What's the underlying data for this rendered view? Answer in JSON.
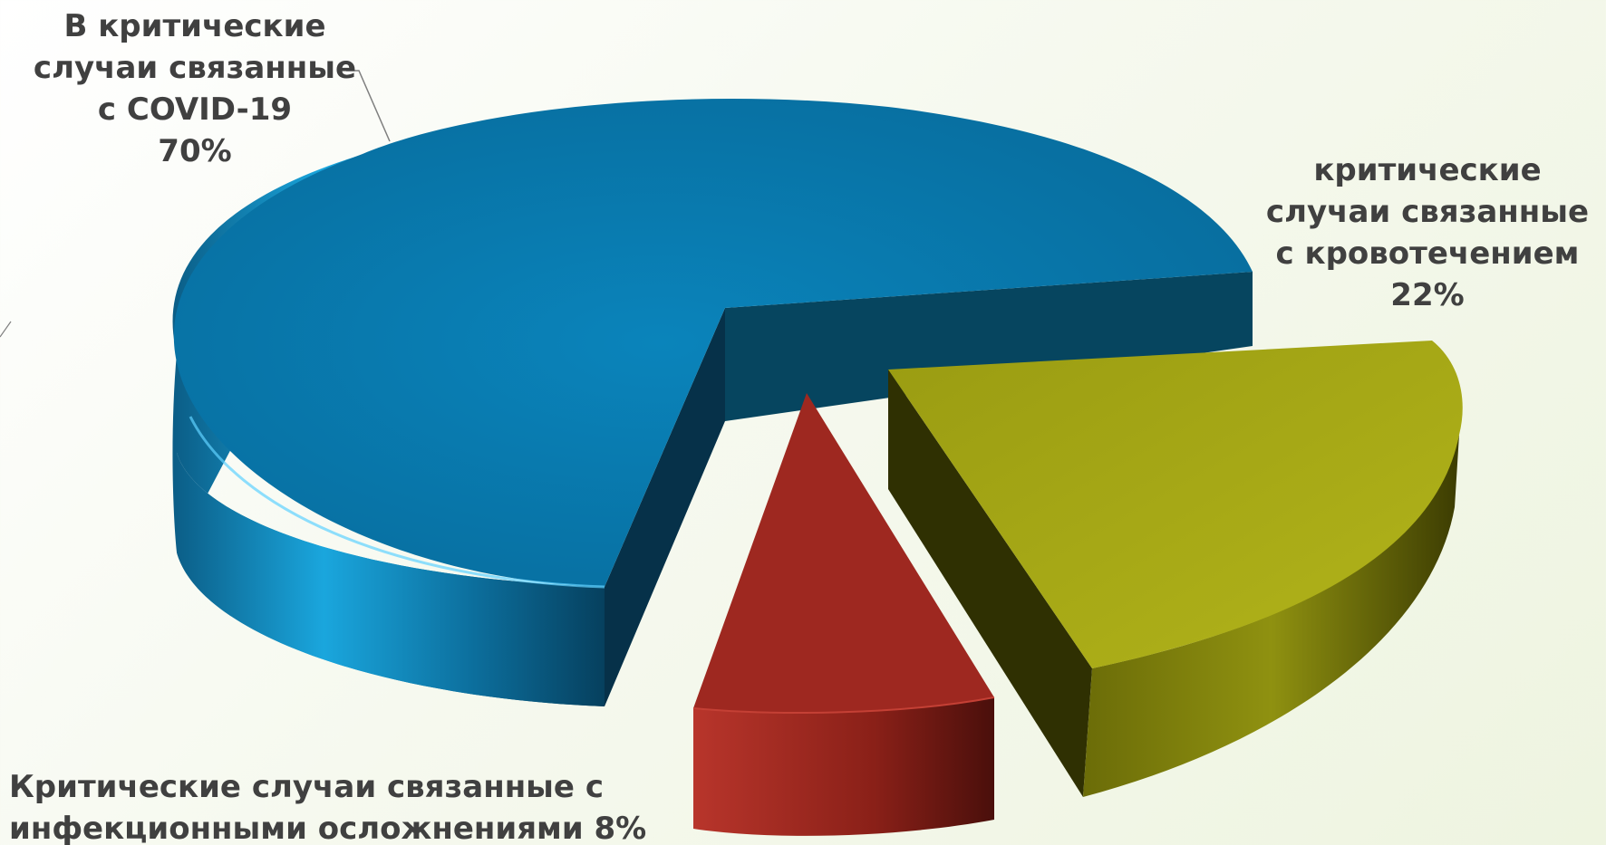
{
  "chart_data": {
    "type": "pie",
    "three_d": true,
    "exploded": true,
    "slices": [
      {
        "label_lines": [
          "В критические",
          "случаи связанные",
          "с COVID-19",
          "70%"
        ],
        "value": 70,
        "color": "#0a87bd"
      },
      {
        "label_lines": [
          "критические",
          "случаи связанные",
          "с кровотечением",
          "22%"
        ],
        "value": 22,
        "color": "#a9ac16"
      },
      {
        "label_lines": [
          "Критические случаи связанные с",
          "инфекционными осложнениями 8%"
        ],
        "value": 8,
        "color": "#a52a22"
      }
    ]
  }
}
